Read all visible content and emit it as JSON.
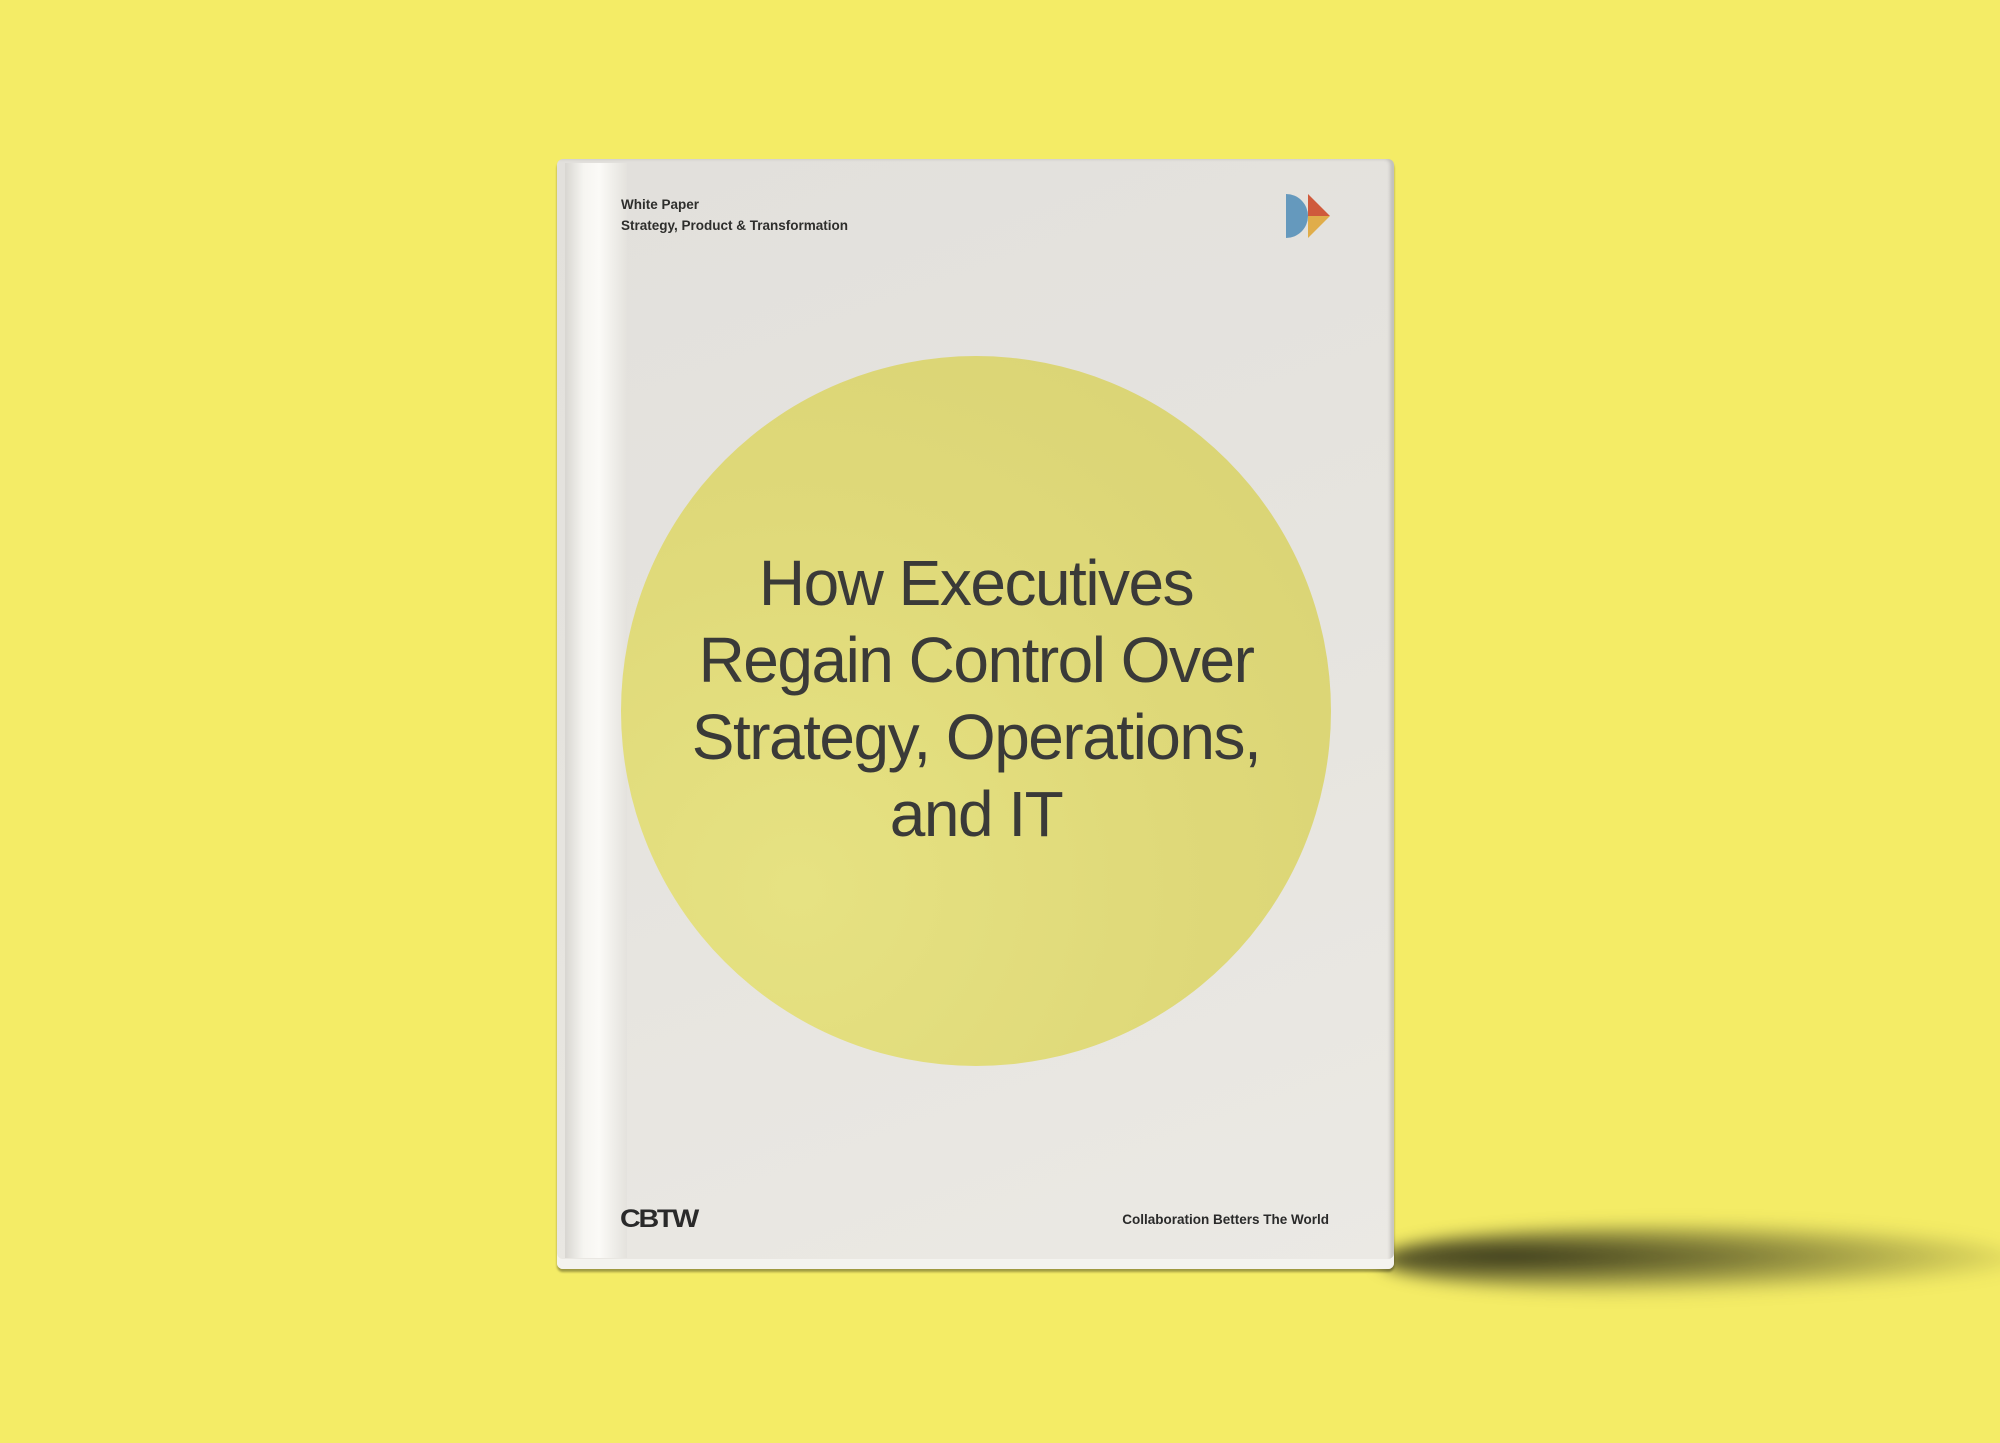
{
  "cover": {
    "label": "White Paper",
    "category": "Strategy, Product & Transformation",
    "title_lines": [
      "How Executives",
      "Regain Control Over",
      "Strategy, Operations,",
      "and IT"
    ],
    "brand": "CBTW",
    "tagline": "Collaboration Betters The World",
    "logo_icon": "cbtw-logo-icon"
  },
  "colors": {
    "background": "#f4ec66",
    "circle": "#dfd979",
    "logo_blue": "#6599bd",
    "logo_red": "#cf5a3c",
    "logo_orange": "#e0ad4a"
  }
}
